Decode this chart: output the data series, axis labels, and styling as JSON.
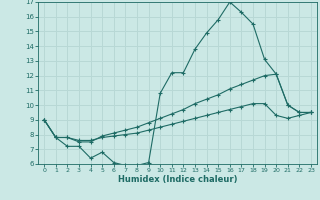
{
  "background_color": "#cbe8e5",
  "grid_color": "#b8d8d5",
  "line_color": "#1e6b65",
  "xlabel": "Humidex (Indice chaleur)",
  "xlim": [
    -0.5,
    23.5
  ],
  "ylim": [
    6,
    17
  ],
  "xticks": [
    0,
    1,
    2,
    3,
    4,
    5,
    6,
    7,
    8,
    9,
    10,
    11,
    12,
    13,
    14,
    15,
    16,
    17,
    18,
    19,
    20,
    21,
    22,
    23
  ],
  "yticks": [
    6,
    7,
    8,
    9,
    10,
    11,
    12,
    13,
    14,
    15,
    16,
    17
  ],
  "line1_x": [
    0,
    1,
    2,
    3,
    4,
    5,
    6,
    7,
    8,
    9,
    10,
    11,
    12,
    13,
    14,
    15,
    16,
    17,
    18,
    19,
    20,
    21,
    22,
    23
  ],
  "line1_y": [
    9.0,
    7.8,
    7.2,
    7.2,
    6.4,
    6.8,
    6.1,
    5.9,
    5.9,
    6.1,
    10.8,
    12.2,
    12.2,
    13.8,
    14.9,
    15.8,
    17.0,
    16.3,
    15.5,
    13.1,
    12.1,
    10.0,
    9.5,
    9.5
  ],
  "line2_x": [
    0,
    1,
    2,
    3,
    4,
    5,
    6,
    7,
    8,
    9,
    10,
    11,
    12,
    13,
    14,
    15,
    16,
    17,
    18,
    19,
    20,
    21,
    22,
    23
  ],
  "line2_y": [
    9.0,
    7.8,
    7.8,
    7.5,
    7.5,
    7.9,
    8.1,
    8.3,
    8.5,
    8.8,
    9.1,
    9.4,
    9.7,
    10.1,
    10.4,
    10.7,
    11.1,
    11.4,
    11.7,
    12.0,
    12.1,
    10.0,
    9.5,
    9.5
  ],
  "line3_x": [
    0,
    1,
    2,
    3,
    4,
    5,
    6,
    7,
    8,
    9,
    10,
    11,
    12,
    13,
    14,
    15,
    16,
    17,
    18,
    19,
    20,
    21,
    22,
    23
  ],
  "line3_y": [
    9.0,
    7.8,
    7.8,
    7.6,
    7.6,
    7.8,
    7.9,
    8.0,
    8.1,
    8.3,
    8.5,
    8.7,
    8.9,
    9.1,
    9.3,
    9.5,
    9.7,
    9.9,
    10.1,
    10.1,
    9.3,
    9.1,
    9.3,
    9.5
  ]
}
